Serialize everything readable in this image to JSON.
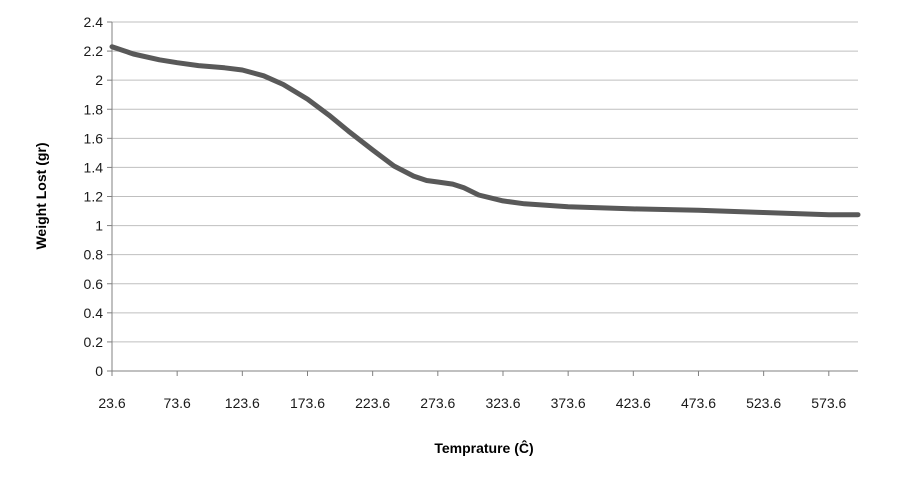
{
  "chart_data": {
    "type": "line",
    "title": "",
    "xlabel": "Temprature (Ĉ)",
    "ylabel": "Weight Lost (gr)",
    "x_ticks": [
      "23.6",
      "73.6",
      "123.6",
      "173.6",
      "223.6",
      "273.6",
      "323.6",
      "373.6",
      "423.6",
      "473.6",
      "523.6",
      "573.6"
    ],
    "y_ticks": [
      "0",
      "0.2",
      "0.4",
      "0.6",
      "0.8",
      "1",
      "1.2",
      "1.4",
      "1.6",
      "1.8",
      "2",
      "2.2",
      "2.4"
    ],
    "xlim": [
      23.6,
      596
    ],
    "ylim": [
      0,
      2.4
    ],
    "grid": "horizontal",
    "legend": "none",
    "line_color": "#595959",
    "gridline_color": "#bfbfbf",
    "series": [
      {
        "x": [
          23.6,
          40,
          60,
          73.6,
          90,
          110,
          123.6,
          140,
          155,
          173.6,
          190,
          205,
          223.6,
          240,
          255,
          265,
          273.6,
          285,
          293.6,
          305,
          323.6,
          340,
          373.6,
          423.6,
          473.6,
          523.6,
          573.6,
          596
        ],
        "y": [
          2.23,
          2.18,
          2.14,
          2.12,
          2.1,
          2.085,
          2.07,
          2.03,
          1.97,
          1.87,
          1.76,
          1.65,
          1.52,
          1.41,
          1.34,
          1.31,
          1.3,
          1.285,
          1.26,
          1.21,
          1.17,
          1.15,
          1.13,
          1.115,
          1.105,
          1.09,
          1.075,
          1.075
        ]
      }
    ]
  }
}
